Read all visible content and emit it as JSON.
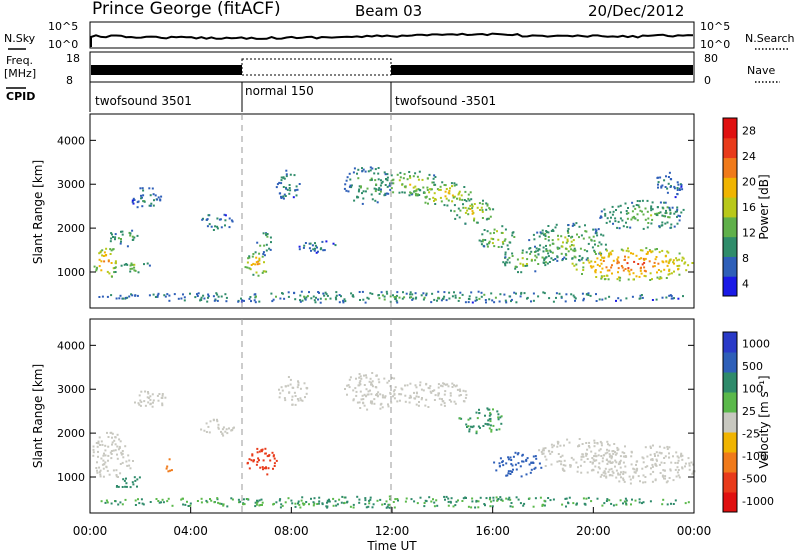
{
  "header": {
    "station": "Prince George (fitACF)",
    "beam": "Beam 03",
    "date": "20/Dec/2012"
  },
  "top_labels": {
    "nsky": "N.Sky",
    "nsearch": "N.Search",
    "freq": "Freq.",
    "freq_unit": "[MHz]",
    "nave": "Nave",
    "cpid": "CPID",
    "noise_ticks": [
      "10^5",
      "10^0"
    ],
    "freq_ticks": [
      "18",
      "8"
    ],
    "nave_ticks": [
      "80",
      "0"
    ]
  },
  "cpid_segments": [
    {
      "label": "twofsound 3501",
      "start": 0,
      "end": 6
    },
    {
      "label": "normal 150",
      "start": 6,
      "end": 12
    },
    {
      "label": "twofsound -3501",
      "start": 12,
      "end": 24
    }
  ],
  "colors": {
    "power_scale": [
      "#1a1ae6",
      "#2e5fb8",
      "#2f8c6a",
      "#5fb04a",
      "#b8c81a",
      "#f0b400",
      "#f07a1a",
      "#e83a1a",
      "#e01010"
    ],
    "velocity_scale": [
      "#2a3ac8",
      "#2e5fb8",
      "#2e8a6a",
      "#5ab84a",
      "#c8c8c0",
      "#f0b400",
      "#f07a1a",
      "#e83a1a",
      "#e01010"
    ]
  },
  "chart_data": [
    {
      "type": "heatmap",
      "name": "power",
      "ylabel": "Slant Range [km]",
      "ylim": [
        180,
        4600
      ],
      "yticks": [
        "1000",
        "2000",
        "3000",
        "4000"
      ],
      "xlim": [
        0,
        24
      ],
      "colorbar": {
        "label": "Power [dB]",
        "ticks": [
          "28",
          "24",
          "20",
          "16",
          "12",
          "8",
          "4"
        ]
      },
      "blobs": [
        {
          "t": 0.6,
          "r": 1250,
          "dt": 0.5,
          "dr": 380,
          "v": 22
        },
        {
          "t": 1.3,
          "r": 1800,
          "dt": 0.6,
          "dr": 220,
          "v": 12
        },
        {
          "t": 1.8,
          "r": 1150,
          "dt": 0.6,
          "dr": 150,
          "v": 14
        },
        {
          "t": 2.2,
          "r": 2700,
          "dt": 0.6,
          "dr": 250,
          "v": 9
        },
        {
          "t": 5.0,
          "r": 2150,
          "dt": 0.7,
          "dr": 200,
          "v": 9
        },
        {
          "t": 6.6,
          "r": 1200,
          "dt": 0.5,
          "dr": 280,
          "v": 20
        },
        {
          "t": 6.9,
          "r": 1700,
          "dt": 0.3,
          "dr": 300,
          "v": 12
        },
        {
          "t": 7.8,
          "r": 3000,
          "dt": 0.5,
          "dr": 350,
          "v": 9
        },
        {
          "t": 9.0,
          "r": 1600,
          "dt": 0.8,
          "dr": 150,
          "v": 8
        },
        {
          "t": 11.0,
          "r": 3000,
          "dt": 1.0,
          "dr": 450,
          "v": 11
        },
        {
          "t": 12.8,
          "r": 3050,
          "dt": 1.2,
          "dr": 300,
          "v": 15
        },
        {
          "t": 14.0,
          "r": 2800,
          "dt": 1.1,
          "dr": 280,
          "v": 18
        },
        {
          "t": 15.2,
          "r": 2400,
          "dt": 0.9,
          "dr": 300,
          "v": 16
        },
        {
          "t": 16.2,
          "r": 1800,
          "dt": 0.8,
          "dr": 300,
          "v": 15
        },
        {
          "t": 17.3,
          "r": 1300,
          "dt": 1.0,
          "dr": 300,
          "v": 14
        },
        {
          "t": 19.0,
          "r": 1700,
          "dt": 1.6,
          "dr": 450,
          "v": 13
        },
        {
          "t": 21.5,
          "r": 1200,
          "dt": 2.5,
          "dr": 380,
          "v": 24
        },
        {
          "t": 22.0,
          "r": 2300,
          "dt": 1.8,
          "dr": 350,
          "v": 12
        },
        {
          "t": 23.0,
          "r": 3000,
          "dt": 0.6,
          "dr": 300,
          "v": 8
        },
        {
          "t": 12.0,
          "r": 450,
          "dt": 12.0,
          "dr": 130,
          "v": 10
        }
      ]
    },
    {
      "type": "heatmap",
      "name": "velocity",
      "ylabel": "Slant Range [km]",
      "xlabel": "Time UT",
      "ylim": [
        180,
        4600
      ],
      "yticks": [
        "1000",
        "2000",
        "3000",
        "4000"
      ],
      "xlim": [
        0,
        24
      ],
      "xticks": [
        "00:00",
        "04:00",
        "08:00",
        "12:00",
        "16:00",
        "20:00",
        "00:00"
      ],
      "colorbar": {
        "label": "Velocity [m s⁻¹]",
        "ticks": [
          "1000",
          "500",
          "100",
          "25",
          "-25",
          "-100",
          "-500",
          "-1000"
        ]
      },
      "blobs": [
        {
          "t": 0.8,
          "r": 1500,
          "dt": 0.9,
          "dr": 550,
          "v": 0
        },
        {
          "t": 1.5,
          "r": 900,
          "dt": 0.7,
          "dr": 150,
          "v": 80
        },
        {
          "t": 2.3,
          "r": 2800,
          "dt": 0.7,
          "dr": 250,
          "v": 0
        },
        {
          "t": 3.2,
          "r": 1250,
          "dt": 0.2,
          "dr": 200,
          "v": -200
        },
        {
          "t": 5.0,
          "r": 2150,
          "dt": 0.7,
          "dr": 200,
          "v": 0
        },
        {
          "t": 6.8,
          "r": 1350,
          "dt": 0.6,
          "dr": 350,
          "v": -600
        },
        {
          "t": 8.0,
          "r": 3000,
          "dt": 0.6,
          "dr": 350,
          "v": 0
        },
        {
          "t": 11.2,
          "r": 3000,
          "dt": 1.2,
          "dr": 450,
          "v": 0
        },
        {
          "t": 13.5,
          "r": 2900,
          "dt": 1.6,
          "dr": 300,
          "v": 0
        },
        {
          "t": 15.5,
          "r": 2300,
          "dt": 1.0,
          "dr": 300,
          "v": 60
        },
        {
          "t": 17.0,
          "r": 1300,
          "dt": 1.0,
          "dr": 300,
          "v": 120
        },
        {
          "t": 19.5,
          "r": 1500,
          "dt": 1.8,
          "dr": 400,
          "v": 0
        },
        {
          "t": 22.0,
          "r": 1300,
          "dt": 2.2,
          "dr": 450,
          "v": 0
        },
        {
          "t": 12.0,
          "r": 450,
          "dt": 12.0,
          "dr": 130,
          "v": 50
        }
      ]
    }
  ]
}
